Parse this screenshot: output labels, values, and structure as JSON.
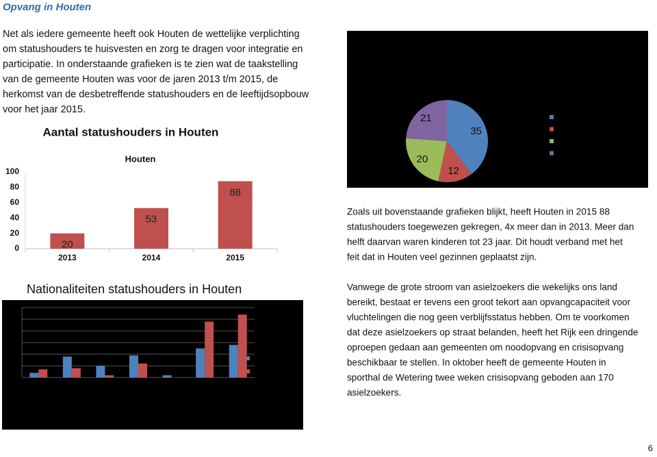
{
  "title": "Opvang in Houten",
  "intro_lines": [
    "Net als iedere gemeente heeft ook Houten de wettelijke verplichting",
    "om statushouders te huisvesten en zorg te dragen voor integratie en",
    "participatie. In onderstaande grafieken is te zien wat de taakstelling",
    "van de gemeente Houten was voor de jaren 2013 t/m 2015, de",
    "herkomst van de desbetreffende statushouders en de leeftijdsopbouw",
    "voor het jaar 2015."
  ],
  "chart_data": [
    {
      "type": "bar",
      "title": "Aantal statushouders in Houten",
      "subtitle": "Houten",
      "categories": [
        "2013",
        "2014",
        "2015"
      ],
      "values": [
        20,
        53,
        88
      ],
      "color": "#c0504d",
      "ylim": [
        0,
        100
      ],
      "yticks": [
        0,
        20,
        40,
        60,
        80,
        100
      ]
    },
    {
      "type": "pie",
      "categories": [
        null,
        null,
        null,
        null
      ],
      "values": [
        35,
        12,
        20,
        21
      ],
      "colors": [
        "#4f81bd",
        "#c0504d",
        "#9bbb59",
        "#8064a2"
      ]
    },
    {
      "type": "grouped_bar",
      "title": "Nationaliteiten statushouders in Houten",
      "categories": [
        null,
        null,
        null,
        null,
        null,
        null,
        null
      ],
      "series": [
        {
          "color": "#4f81bd",
          "values": [
            0.4,
            1.8,
            1.0,
            1.9,
            0.2,
            2.5,
            2.8
          ]
        },
        {
          "color": "#c0504d",
          "values": [
            0.7,
            0.8,
            0.2,
            1.2,
            0,
            4.8,
            5.4
          ]
        }
      ],
      "ylim": [
        0,
        6
      ],
      "yticks": [
        0,
        1,
        2,
        3,
        4,
        5,
        6
      ],
      "grid": true
    }
  ],
  "right_text": {
    "paragraph1_lines": [
      "Zoals uit bovenstaande grafieken blijkt, heeft Houten in 2015 88",
      "statushouders toegewezen gekregen, 4x meer dan in 2013. Meer dan",
      "helft daarvan waren kinderen tot 23 jaar. Dit houdt verband met het",
      "feit dat in Houten veel gezinnen geplaatst zijn."
    ],
    "paragraph2_lines": [
      "Vanwege de grote stroom van asielzoekers die wekelijks ons land",
      "bereikt, bestaat er tevens een groot tekort aan opvangcapaciteit voor",
      "vluchtelingen die nog geen verblijfsstatus hebben. Om te voorkomen",
      "dat deze asielzoekers op straat belanden, heeft het Rijk een dringende",
      "oproepen gedaan aan gemeenten om noodopvang en crisisopvang",
      "beschikbaar te stellen. In oktober heeft de gemeente Houten in",
      "sporthal de Wetering twee weken crisisopvang geboden aan 170",
      "asielzoekers."
    ]
  },
  "page_number": 6
}
